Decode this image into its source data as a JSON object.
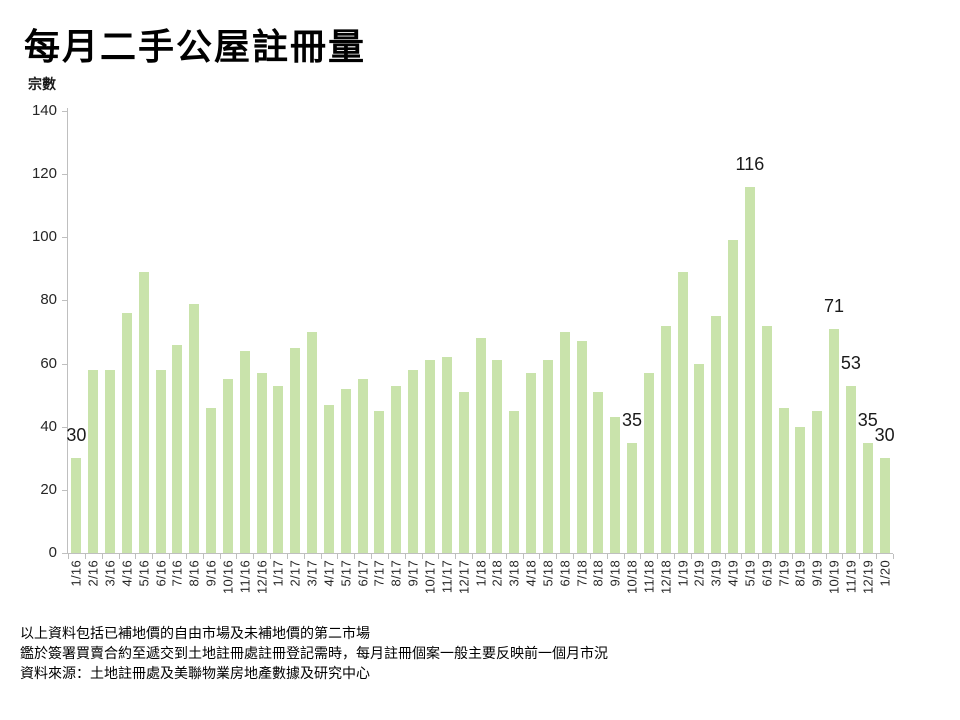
{
  "header": {
    "title": "每月二手公屋註冊量"
  },
  "chart_data": {
    "type": "bar",
    "title": "每月二手公屋註冊量",
    "ylabel": "宗數",
    "xlabel": "",
    "ylim": [
      0,
      140
    ],
    "yticks": [
      0,
      20,
      40,
      60,
      80,
      100,
      120,
      140
    ],
    "grid": false,
    "legend": "none",
    "bar_color": "#c9e3ab",
    "axis_color": "#bfbfbf",
    "text_color": "#1a1a1a",
    "categories": [
      "1/16",
      "2/16",
      "3/16",
      "4/16",
      "5/16",
      "6/16",
      "7/16",
      "8/16",
      "9/16",
      "10/16",
      "11/16",
      "12/16",
      "1/17",
      "2/17",
      "3/17",
      "4/17",
      "5/17",
      "6/17",
      "7/17",
      "8/17",
      "9/17",
      "10/17",
      "11/17",
      "12/17",
      "1/18",
      "2/18",
      "3/18",
      "4/18",
      "5/18",
      "6/18",
      "7/18",
      "8/18",
      "9/18",
      "10/18",
      "11/18",
      "12/18",
      "1/19",
      "2/19",
      "3/19",
      "4/19",
      "5/19",
      "6/19",
      "7/19",
      "8/19",
      "9/19",
      "10/19",
      "11/19",
      "12/19",
      "1/20"
    ],
    "values": [
      30,
      58,
      58,
      76,
      89,
      58,
      66,
      79,
      46,
      55,
      64,
      57,
      53,
      65,
      70,
      47,
      52,
      55,
      45,
      53,
      58,
      61,
      62,
      51,
      68,
      61,
      45,
      57,
      61,
      70,
      67,
      51,
      43,
      35,
      57,
      72,
      89,
      60,
      75,
      99,
      116,
      72,
      46,
      40,
      45,
      71,
      53,
      35,
      30
    ],
    "data_labels": [
      {
        "index": 0,
        "text": "30"
      },
      {
        "index": 33,
        "text": "35"
      },
      {
        "index": 40,
        "text": "116"
      },
      {
        "index": 45,
        "text": "71"
      },
      {
        "index": 46,
        "text": "53"
      },
      {
        "index": 47,
        "text": "35"
      },
      {
        "index": 48,
        "text": "30"
      }
    ]
  },
  "footnotes": {
    "lines": [
      "以上資料包括已補地價的自由市場及未補地價的第二市場",
      "鑑於簽署買賣合約至遞交到土地註冊處註冊登記需時，每月註冊個案一般主要反映前一個月市況",
      "資料來源：土地註冊處及美聯物業房地產數據及研究中心"
    ]
  }
}
